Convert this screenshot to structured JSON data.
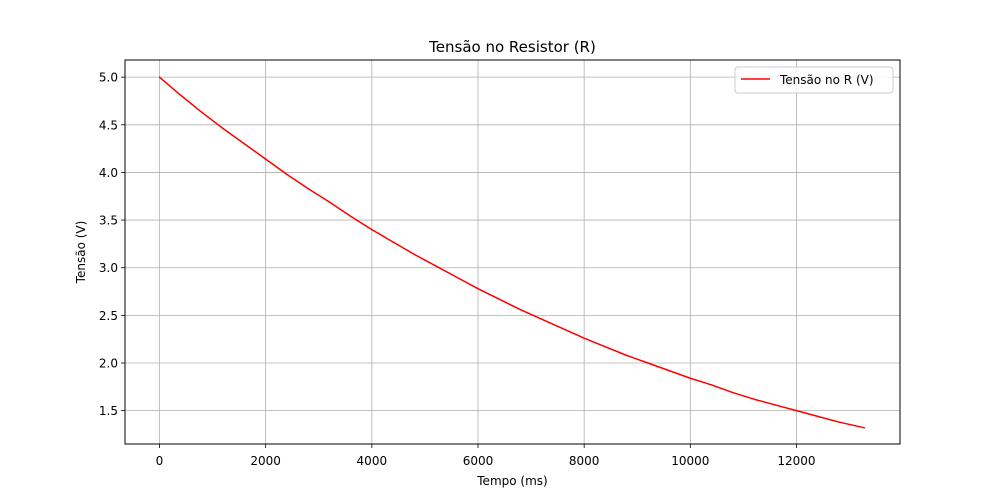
{
  "chart_data": {
    "type": "line",
    "title": "Tensão no Resistor (R)",
    "xlabel": "Tempo (ms)",
    "ylabel": "Tensão (V)",
    "xlim": [
      -650,
      13950
    ],
    "ylim": [
      1.15,
      5.18
    ],
    "xticks": [
      0,
      2000,
      4000,
      6000,
      8000,
      10000,
      12000
    ],
    "xtick_labels": [
      "0",
      "2000",
      "4000",
      "6000",
      "8000",
      "10000",
      "12000"
    ],
    "yticks": [
      1.5,
      2.0,
      2.5,
      3.0,
      3.5,
      4.0,
      4.5,
      5.0
    ],
    "ytick_labels": [
      "1.5",
      "2.0",
      "2.5",
      "3.0",
      "3.5",
      "4.0",
      "4.5",
      "5.0"
    ],
    "grid": true,
    "legend_position": "upper right",
    "series": [
      {
        "name": "Tensão no R (V)",
        "color": "#ff0000",
        "x": [
          0,
          400,
          800,
          1200,
          1600,
          2000,
          2400,
          2800,
          3200,
          3600,
          4000,
          4400,
          4800,
          5200,
          5600,
          6000,
          6400,
          6800,
          7200,
          7600,
          8000,
          8400,
          8800,
          9200,
          9600,
          10000,
          10400,
          10800,
          11200,
          11600,
          12000,
          12400,
          12800,
          13280
        ],
        "y": [
          5.0,
          4.81,
          4.63,
          4.46,
          4.3,
          4.14,
          3.98,
          3.83,
          3.69,
          3.54,
          3.4,
          3.27,
          3.14,
          3.02,
          2.9,
          2.78,
          2.67,
          2.56,
          2.46,
          2.36,
          2.26,
          2.17,
          2.08,
          2.0,
          1.92,
          1.84,
          1.77,
          1.69,
          1.62,
          1.56,
          1.5,
          1.44,
          1.38,
          1.32
        ]
      }
    ]
  }
}
